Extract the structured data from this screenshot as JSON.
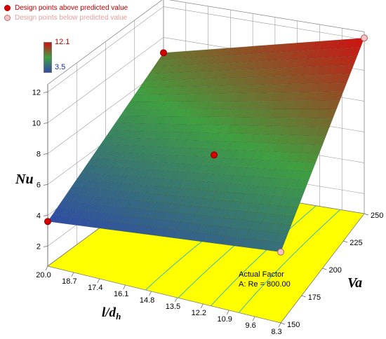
{
  "legend": {
    "above_label": "Design points above predicted value",
    "below_label": "Design points below predicted value",
    "above_color": "#d40000",
    "below_color": "#f2c4c4"
  },
  "colorbar": {
    "max_label": "12.1",
    "min_label": "3.5",
    "colors": [
      "#2f4aa8",
      "#3fa040",
      "#d01010"
    ]
  },
  "factor_note": {
    "line1": "Actual Factor",
    "line2": "A: Re = 800.00"
  },
  "chart_data": {
    "type": "surface3d",
    "z_label": "Nu",
    "x_label_main": "l/d",
    "x_label_sub": "h",
    "y_label": "Va",
    "x_ticks": [
      "20.0",
      "18.7",
      "17.4",
      "16.1",
      "14.8",
      "13.5",
      "12.2",
      "10.9",
      "9.6",
      "8.3"
    ],
    "y_ticks": [
      "150",
      "175",
      "200",
      "225",
      "250"
    ],
    "z_ticks": [
      "2",
      "4",
      "6",
      "8",
      "10",
      "12"
    ],
    "x_range": [
      8.3,
      20.0
    ],
    "y_range": [
      150,
      250
    ],
    "z_range": [
      2,
      12
    ],
    "surface_corners": [
      {
        "x": 20.0,
        "y": 150,
        "z": 3.6
      },
      {
        "x": 8.3,
        "y": 150,
        "z": 5.3
      },
      {
        "x": 8.3,
        "y": 250,
        "z": 12.1
      },
      {
        "x": 20.0,
        "y": 250,
        "z": 9.0
      }
    ],
    "design_points": [
      {
        "x": 20.0,
        "y": 150,
        "z": 3.6,
        "type": "above"
      },
      {
        "x": 20.0,
        "y": 250,
        "z": 9.0,
        "type": "above"
      },
      {
        "x": 14.15,
        "y": 200,
        "z": 6.6,
        "type": "above"
      },
      {
        "x": 8.3,
        "y": 250,
        "z": 12.1,
        "type": "below"
      },
      {
        "x": 8.3,
        "y": 150,
        "z": 5.3,
        "type": "below"
      }
    ],
    "floor_color": "#ffff00",
    "contour_color": "#38b8c8",
    "grid": true
  }
}
